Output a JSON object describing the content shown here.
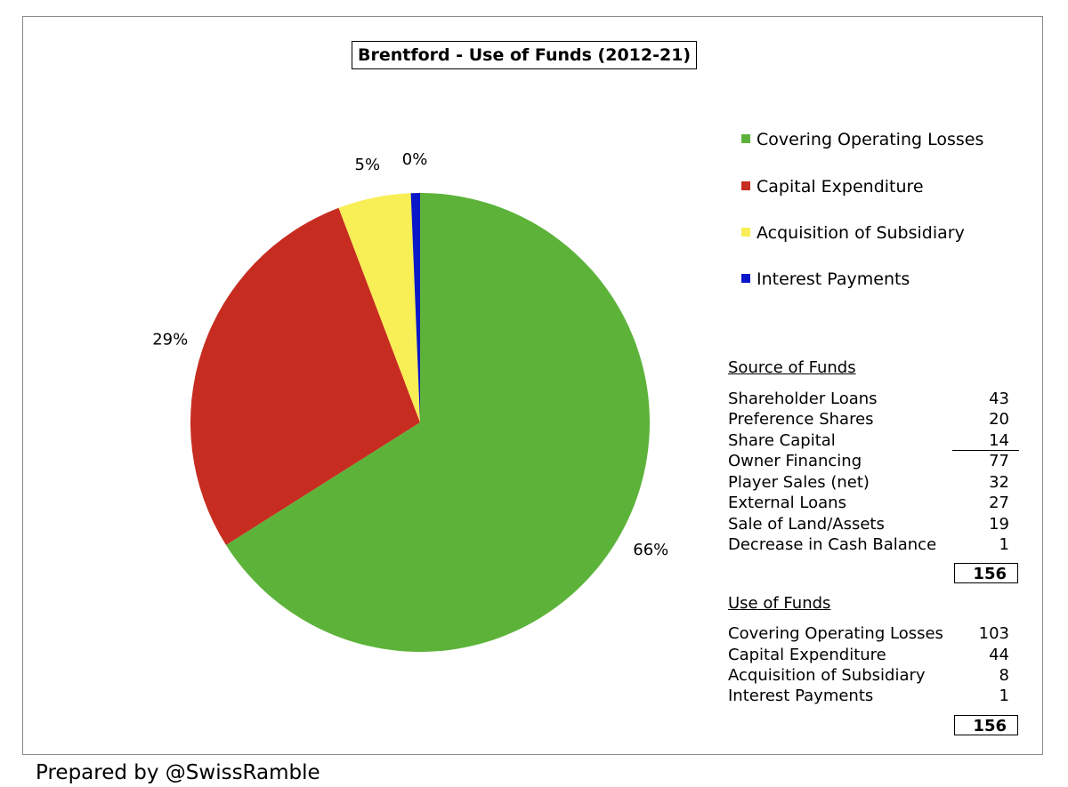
{
  "chart_data": {
    "type": "pie",
    "title": "Brentford - Use of Funds (2012-21)",
    "slices": [
      {
        "name": "Covering Operating Losses",
        "value": 103,
        "label": "66%",
        "color": "#5db33a"
      },
      {
        "name": "Capital Expenditure",
        "value": 44,
        "label": "29%",
        "color": "#c72c20"
      },
      {
        "name": "Acquisition of Subsidiary",
        "value": 8,
        "label": "5%",
        "color": "#f8ee55"
      },
      {
        "name": "Interest Payments",
        "value": 1,
        "label": "0%",
        "color": "#0a17c8"
      }
    ],
    "legend_position": "right"
  },
  "source_table": {
    "heading": "Source of Funds",
    "rows": [
      {
        "label": "Shareholder Loans",
        "value": "43"
      },
      {
        "label": "Preference Shares",
        "value": "20"
      },
      {
        "label": "Share Capital",
        "value": "14"
      },
      {
        "label": "Owner Financing",
        "value": "77"
      },
      {
        "label": "Player Sales (net)",
        "value": "32"
      },
      {
        "label": "External Loans",
        "value": "27"
      },
      {
        "label": "Sale of Land/Assets",
        "value": "19"
      },
      {
        "label": "Decrease in Cash Balance",
        "value": "1"
      }
    ],
    "total": "156"
  },
  "use_table": {
    "heading": "Use of Funds",
    "rows": [
      {
        "label": "Covering Operating Losses",
        "value": "103"
      },
      {
        "label": "Capital Expenditure",
        "value": "44"
      },
      {
        "label": "Acquisition of Subsidiary",
        "value": "8"
      },
      {
        "label": "Interest Payments",
        "value": "1"
      }
    ],
    "total": "156"
  },
  "footer": "Prepared by @SwissRamble"
}
